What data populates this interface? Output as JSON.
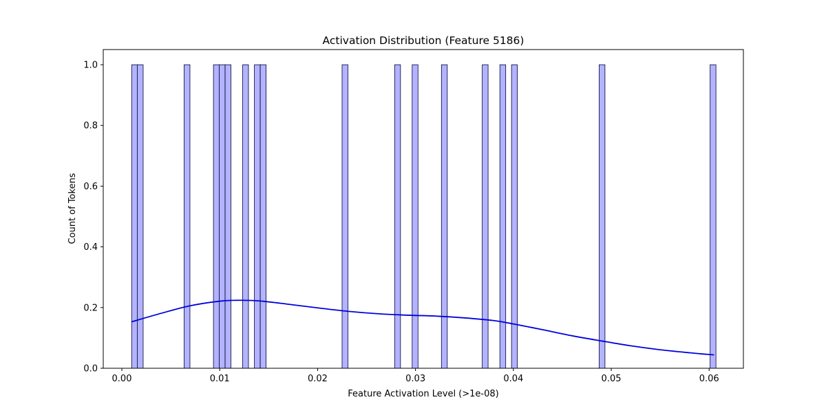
{
  "chart_data": {
    "type": "bar",
    "title": "Activation Distribution (Feature 5186)",
    "xlabel": "Feature Activation Level (>1e-08)",
    "ylabel": "Count of Tokens",
    "xlim": [
      -0.0019,
      0.0635
    ],
    "ylim": [
      0.0,
      1.05
    ],
    "xticks": [
      0.0,
      0.01,
      0.02,
      0.03,
      0.04,
      0.05,
      0.06
    ],
    "xtick_labels": [
      "0.00",
      "0.01",
      "0.02",
      "0.03",
      "0.04",
      "0.05",
      "0.06"
    ],
    "yticks": [
      0.0,
      0.2,
      0.4,
      0.6,
      0.8,
      1.0
    ],
    "ytick_labels": [
      "0.0",
      "0.2",
      "0.4",
      "0.6",
      "0.8",
      "1.0"
    ],
    "bin_width": 0.000597,
    "bar_color": "#b3b3ff",
    "edge_color": "#000033",
    "bars": [
      {
        "x": 0.001,
        "count": 1
      },
      {
        "x": 0.00158,
        "count": 1
      },
      {
        "x": 0.00636,
        "count": 1
      },
      {
        "x": 0.00936,
        "count": 1
      },
      {
        "x": 0.00995,
        "count": 1
      },
      {
        "x": 0.01055,
        "count": 1
      },
      {
        "x": 0.01234,
        "count": 1
      },
      {
        "x": 0.01354,
        "count": 1
      },
      {
        "x": 0.01414,
        "count": 1
      },
      {
        "x": 0.0225,
        "count": 1
      },
      {
        "x": 0.02787,
        "count": 1
      },
      {
        "x": 0.02966,
        "count": 1
      },
      {
        "x": 0.03265,
        "count": 1
      },
      {
        "x": 0.03682,
        "count": 1
      },
      {
        "x": 0.03862,
        "count": 1
      },
      {
        "x": 0.03981,
        "count": 1
      },
      {
        "x": 0.04876,
        "count": 1
      },
      {
        "x": 0.0601,
        "count": 1
      }
    ],
    "kde": {
      "color": "#0000dd",
      "x": [
        0.001,
        0.004,
        0.007,
        0.01,
        0.012,
        0.014,
        0.017,
        0.02,
        0.023,
        0.026,
        0.029,
        0.032,
        0.035,
        0.038,
        0.04,
        0.043,
        0.046,
        0.049,
        0.052,
        0.055,
        0.058,
        0.0605
      ],
      "y": [
        0.153,
        0.181,
        0.206,
        0.221,
        0.224,
        0.222,
        0.211,
        0.199,
        0.188,
        0.18,
        0.175,
        0.172,
        0.166,
        0.157,
        0.146,
        0.127,
        0.107,
        0.09,
        0.074,
        0.061,
        0.051,
        0.044
      ]
    }
  }
}
